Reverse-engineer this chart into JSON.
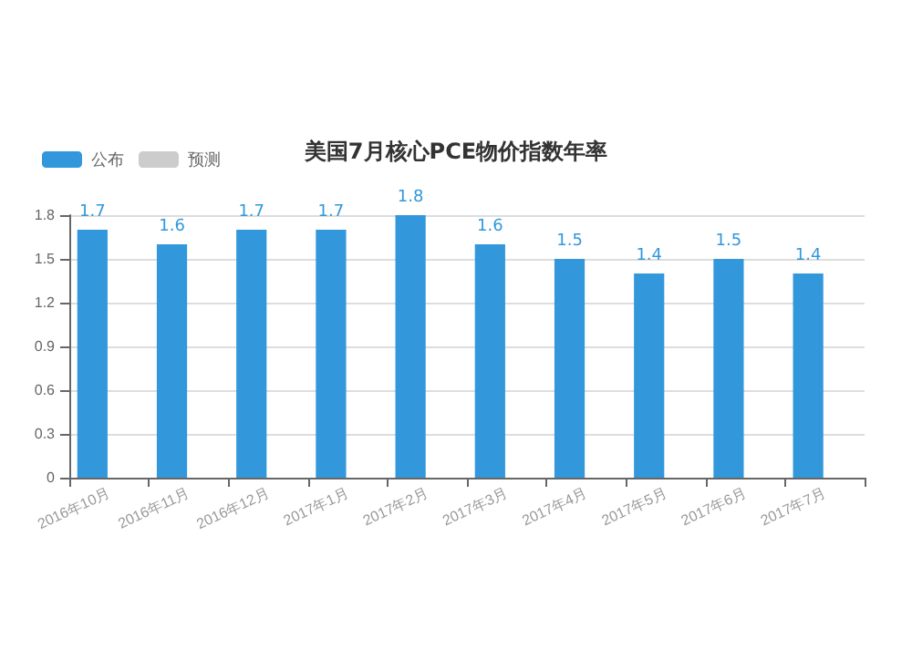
{
  "chart_data": {
    "type": "bar",
    "title": "美国7月核心PCE物价指数年率",
    "categories": [
      "2016年10月",
      "2016年11月",
      "2016年12月",
      "2017年1月",
      "2017年2月",
      "2017年3月",
      "2017年4月",
      "2017年5月",
      "2017年6月",
      "2017年7月"
    ],
    "series": [
      {
        "name": "公布",
        "color": "#3398db",
        "values": [
          1.7,
          1.6,
          1.7,
          1.7,
          1.8,
          1.6,
          1.5,
          1.4,
          1.5,
          1.4
        ]
      },
      {
        "name": "预测",
        "color": "#cccccc",
        "values": [
          null,
          null,
          null,
          null,
          null,
          null,
          null,
          null,
          null,
          null
        ]
      }
    ],
    "ylim": [
      0,
      1.8
    ],
    "yticks": [
      0,
      0.3,
      0.6,
      0.9,
      1.2,
      1.5,
      1.8
    ],
    "grid": "y",
    "legend": "top left",
    "data_labels": true
  }
}
